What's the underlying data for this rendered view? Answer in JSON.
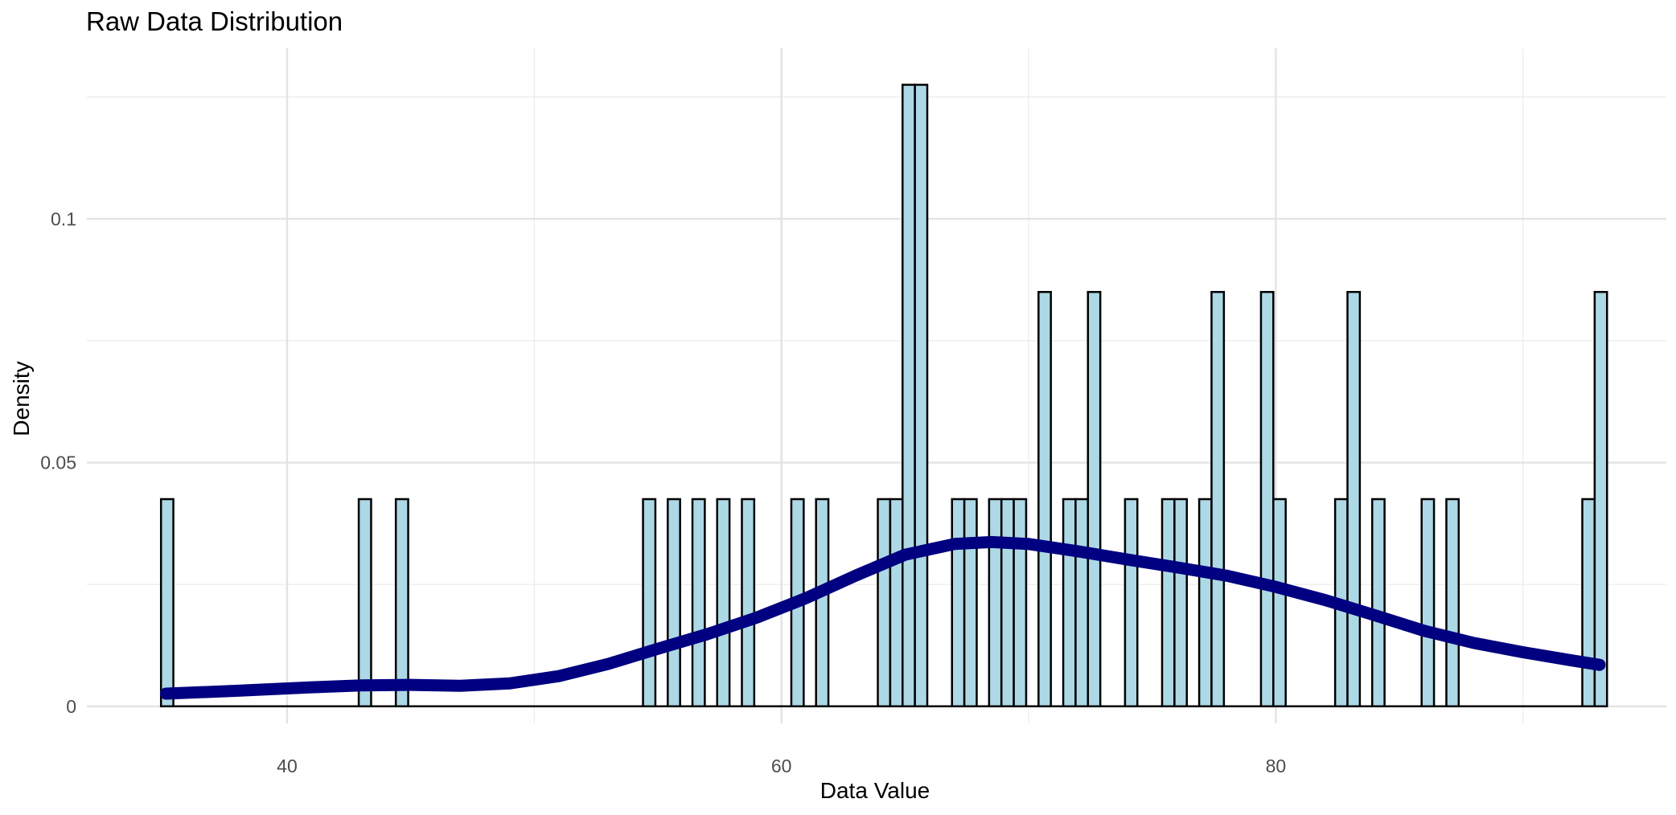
{
  "chart_data": {
    "type": "histogram",
    "title": "Raw Data Distribution",
    "xlabel": "Data Value",
    "ylabel": "Density",
    "xlim": [
      31.9,
      95.8
    ],
    "ylim": [
      -0.0035,
      0.135
    ],
    "x_ticks": [
      {
        "value": 40,
        "label": "40"
      },
      {
        "value": 60,
        "label": "60"
      },
      {
        "value": 80,
        "label": "80"
      }
    ],
    "x_minor_ticks": [
      50,
      70,
      90
    ],
    "y_ticks": [
      {
        "value": 0,
        "label": "0"
      },
      {
        "value": 0.05,
        "label": "0.05"
      },
      {
        "value": 0.1,
        "label": "0.1"
      }
    ],
    "y_minor_ticks": [
      0.025,
      0.075,
      0.125
    ],
    "grid": true,
    "bar_fill": "#add8e6",
    "bar_stroke": "#000000",
    "density_color": "#000080",
    "bins": [
      {
        "x0": 34.9,
        "x1": 35.4,
        "density": 0.0425
      },
      {
        "x0": 42.9,
        "x1": 43.4,
        "density": 0.0425
      },
      {
        "x0": 44.4,
        "x1": 44.9,
        "density": 0.0425
      },
      {
        "x0": 54.4,
        "x1": 54.9,
        "density": 0.0425
      },
      {
        "x0": 55.4,
        "x1": 55.9,
        "density": 0.0425
      },
      {
        "x0": 56.4,
        "x1": 56.9,
        "density": 0.0425
      },
      {
        "x0": 57.4,
        "x1": 57.9,
        "density": 0.0425
      },
      {
        "x0": 58.4,
        "x1": 58.9,
        "density": 0.0425
      },
      {
        "x0": 60.4,
        "x1": 60.9,
        "density": 0.0425
      },
      {
        "x0": 61.4,
        "x1": 61.9,
        "density": 0.0425
      },
      {
        "x0": 63.9,
        "x1": 64.4,
        "density": 0.0425
      },
      {
        "x0": 64.4,
        "x1": 64.9,
        "density": 0.0425
      },
      {
        "x0": 64.9,
        "x1": 65.4,
        "density": 0.1275
      },
      {
        "x0": 65.4,
        "x1": 65.9,
        "density": 0.1275
      },
      {
        "x0": 66.9,
        "x1": 67.4,
        "density": 0.0425
      },
      {
        "x0": 67.4,
        "x1": 67.9,
        "density": 0.0425
      },
      {
        "x0": 68.4,
        "x1": 68.9,
        "density": 0.0425
      },
      {
        "x0": 68.9,
        "x1": 69.4,
        "density": 0.0425
      },
      {
        "x0": 69.4,
        "x1": 69.9,
        "density": 0.0425
      },
      {
        "x0": 70.4,
        "x1": 70.9,
        "density": 0.085
      },
      {
        "x0": 71.4,
        "x1": 71.9,
        "density": 0.0425
      },
      {
        "x0": 71.9,
        "x1": 72.4,
        "density": 0.0425
      },
      {
        "x0": 72.4,
        "x1": 72.9,
        "density": 0.085
      },
      {
        "x0": 73.9,
        "x1": 74.4,
        "density": 0.0425
      },
      {
        "x0": 75.4,
        "x1": 75.9,
        "density": 0.0425
      },
      {
        "x0": 75.9,
        "x1": 76.4,
        "density": 0.0425
      },
      {
        "x0": 76.9,
        "x1": 77.4,
        "density": 0.0425
      },
      {
        "x0": 77.4,
        "x1": 77.9,
        "density": 0.085
      },
      {
        "x0": 79.4,
        "x1": 79.9,
        "density": 0.085
      },
      {
        "x0": 79.9,
        "x1": 80.4,
        "density": 0.0425
      },
      {
        "x0": 82.4,
        "x1": 82.9,
        "density": 0.0425
      },
      {
        "x0": 82.9,
        "x1": 83.4,
        "density": 0.085
      },
      {
        "x0": 83.9,
        "x1": 84.4,
        "density": 0.0425
      },
      {
        "x0": 85.9,
        "x1": 86.4,
        "density": 0.0425
      },
      {
        "x0": 86.9,
        "x1": 87.4,
        "density": 0.0425
      },
      {
        "x0": 92.4,
        "x1": 92.9,
        "density": 0.0425
      },
      {
        "x0": 92.9,
        "x1": 93.4,
        "density": 0.085
      }
    ],
    "density_curve": [
      {
        "x": 35.1,
        "y": 0.0026
      },
      {
        "x": 38.0,
        "y": 0.0032
      },
      {
        "x": 41.0,
        "y": 0.0039
      },
      {
        "x": 43.0,
        "y": 0.0043
      },
      {
        "x": 45.0,
        "y": 0.0044
      },
      {
        "x": 47.0,
        "y": 0.0042
      },
      {
        "x": 49.0,
        "y": 0.0047
      },
      {
        "x": 51.0,
        "y": 0.0062
      },
      {
        "x": 53.0,
        "y": 0.0087
      },
      {
        "x": 55.0,
        "y": 0.0118
      },
      {
        "x": 57.0,
        "y": 0.0148
      },
      {
        "x": 59.0,
        "y": 0.0182
      },
      {
        "x": 61.0,
        "y": 0.0222
      },
      {
        "x": 63.0,
        "y": 0.0268
      },
      {
        "x": 65.0,
        "y": 0.0311
      },
      {
        "x": 67.0,
        "y": 0.0333
      },
      {
        "x": 68.5,
        "y": 0.0337
      },
      {
        "x": 70.0,
        "y": 0.0333
      },
      {
        "x": 72.0,
        "y": 0.0318
      },
      {
        "x": 74.0,
        "y": 0.0301
      },
      {
        "x": 76.0,
        "y": 0.0285
      },
      {
        "x": 78.0,
        "y": 0.0268
      },
      {
        "x": 80.0,
        "y": 0.0245
      },
      {
        "x": 82.0,
        "y": 0.0218
      },
      {
        "x": 84.0,
        "y": 0.0187
      },
      {
        "x": 86.0,
        "y": 0.0155
      },
      {
        "x": 88.0,
        "y": 0.013
      },
      {
        "x": 90.0,
        "y": 0.0111
      },
      {
        "x": 92.0,
        "y": 0.0094
      },
      {
        "x": 93.1,
        "y": 0.0085
      }
    ]
  }
}
